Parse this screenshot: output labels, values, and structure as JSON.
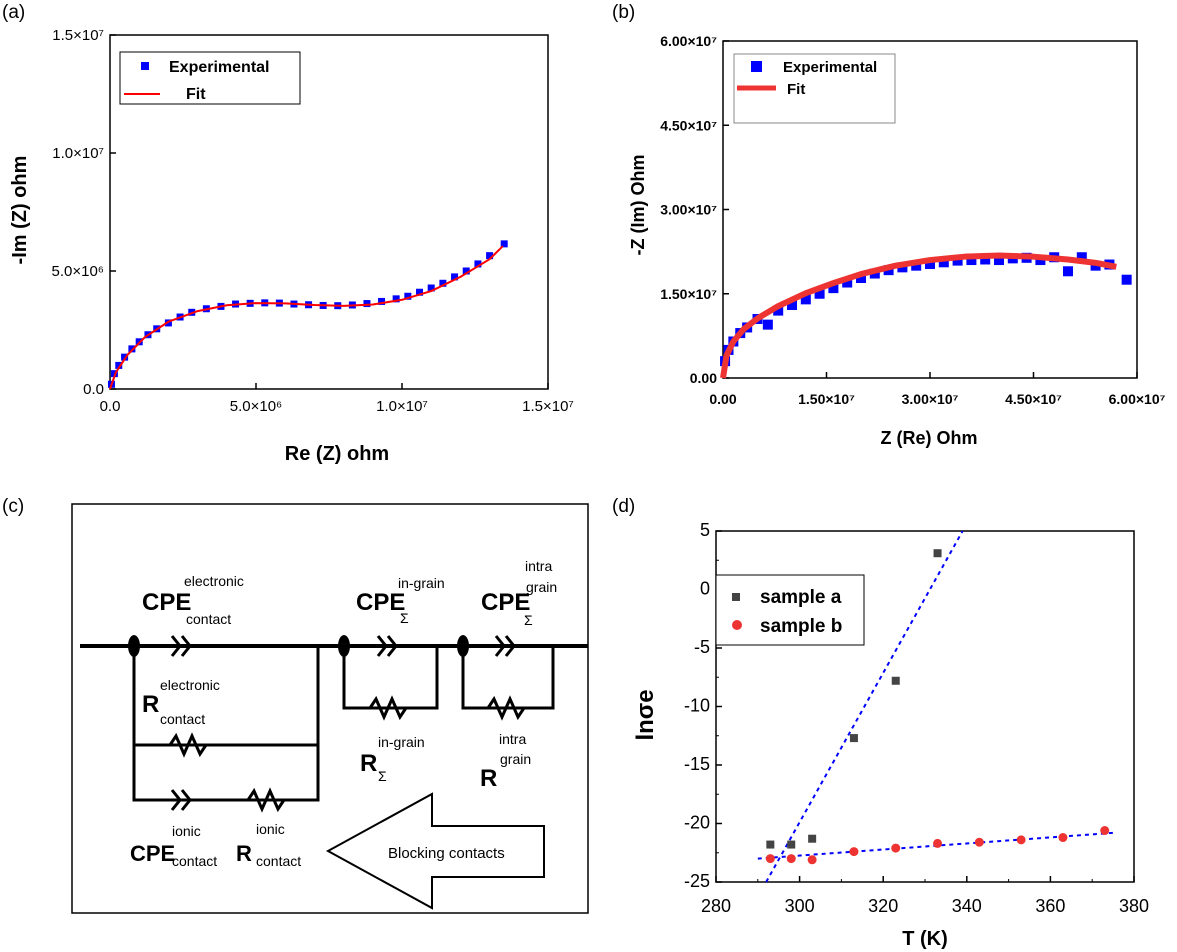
{
  "panels": {
    "a": {
      "label": "(a)"
    },
    "b": {
      "label": "(b)"
    },
    "c": {
      "label": "(c)"
    },
    "d": {
      "label": "(d)"
    }
  },
  "chart_data": [
    {
      "id": "a",
      "type": "scatter",
      "xlabel": "Re (Z) ohm",
      "ylabel": "-Im (Z) ohm",
      "xlim": [
        0,
        15000000
      ],
      "ylim": [
        0,
        15000000
      ],
      "xticks": [
        "0.0",
        "5.0×10⁶",
        "1.0×10⁷",
        "1.5×10⁷"
      ],
      "yticks": [
        "0.0",
        "5.0×10⁶",
        "1.0×10⁷",
        "1.5×10⁷"
      ],
      "legend": {
        "position": "top-left",
        "entries": [
          "Experimental",
          "Fit"
        ]
      },
      "series": [
        {
          "name": "Experimental",
          "marker": "square",
          "color": "#0000ff",
          "x": [
            50000,
            150000,
            300000,
            500000,
            750000,
            1000000,
            1300000,
            1600000,
            2000000,
            2400000,
            2800000,
            3300000,
            3800000,
            4300000,
            4800000,
            5300000,
            5800000,
            6300000,
            6800000,
            7300000,
            7800000,
            8300000,
            8800000,
            9300000,
            9800000,
            10200000,
            10600000,
            11000000,
            11400000,
            11800000,
            12200000,
            12600000,
            13000000,
            13500000
          ],
          "y": [
            200000,
            650000,
            1000000,
            1350000,
            1700000,
            2000000,
            2300000,
            2550000,
            2800000,
            3050000,
            3250000,
            3400000,
            3500000,
            3600000,
            3630000,
            3650000,
            3640000,
            3600000,
            3570000,
            3540000,
            3530000,
            3560000,
            3620000,
            3710000,
            3820000,
            3930000,
            4100000,
            4280000,
            4480000,
            4750000,
            5000000,
            5300000,
            5650000,
            6150000
          ]
        },
        {
          "name": "Fit",
          "marker": "line",
          "color": "#ff0000",
          "x": [
            0,
            200000,
            600000,
            1200000,
            2000000,
            3000000,
            4000000,
            5000000,
            6000000,
            7000000,
            8000000,
            9000000,
            10000000,
            11000000,
            12000000,
            13000000,
            13450000
          ],
          "y": [
            0,
            700000,
            1450000,
            2200000,
            2850000,
            3300000,
            3550000,
            3640000,
            3630000,
            3560000,
            3520000,
            3580000,
            3780000,
            4150000,
            4750000,
            5500000,
            6050000
          ]
        }
      ]
    },
    {
      "id": "b",
      "type": "scatter",
      "xlabel": "Z (Re) Ohm",
      "ylabel": "-Z (Im) Ohm",
      "xlim": [
        0,
        60000000
      ],
      "ylim": [
        0,
        60000000
      ],
      "xticks": [
        "0.00",
        "1.50×10⁷",
        "3.00×10⁷",
        "4.50×10⁷",
        "6.00×10⁷"
      ],
      "yticks": [
        "0.00",
        "1.50×10⁷",
        "3.00×10⁷",
        "4.50×10⁷",
        "6.00×10⁷"
      ],
      "legend": {
        "position": "top-left",
        "entries": [
          "Experimental",
          "Fit"
        ]
      },
      "series": [
        {
          "name": "Experimental",
          "marker": "square",
          "color": "#0000ff",
          "x": [
            300000,
            800000,
            1500000,
            2500000,
            3500000,
            5000000,
            6500000,
            8000000,
            10000000,
            12000000,
            14000000,
            16000000,
            18000000,
            20000000,
            22000000,
            24000000,
            26000000,
            28000000,
            30000000,
            32000000,
            34000000,
            36000000,
            38000000,
            40000000,
            42000000,
            44000000,
            46000000,
            48000000,
            50000000,
            52000000,
            54000000,
            56000000,
            58500000
          ],
          "y": [
            3000000,
            5000000,
            6500000,
            8000000,
            9000000,
            10500000,
            9500000,
            12000000,
            13000000,
            14000000,
            15000000,
            16000000,
            17000000,
            17800000,
            18600000,
            19200000,
            19700000,
            20000000,
            20300000,
            20600000,
            20900000,
            21000000,
            21100000,
            21000000,
            21300000,
            21400000,
            21000000,
            21500000,
            19000000,
            21500000,
            20000000,
            20200000,
            17500000
          ]
        },
        {
          "name": "Fit",
          "marker": "line",
          "color": "#ee3333",
          "x": [
            0,
            500000,
            1500000,
            3000000,
            5000000,
            8000000,
            12000000,
            16000000,
            20000000,
            25000000,
            30000000,
            35000000,
            40000000,
            45000000,
            50000000,
            54000000,
            57000000
          ],
          "y": [
            0,
            4000000,
            6500000,
            8700000,
            10600000,
            12800000,
            15100000,
            16900000,
            18500000,
            20000000,
            21000000,
            21600000,
            21800000,
            21600000,
            21100000,
            20500000,
            19800000
          ]
        }
      ]
    },
    {
      "id": "d",
      "type": "scatter",
      "xlabel": "T (K)",
      "ylabel": "lnσe",
      "xlim": [
        280,
        380
      ],
      "ylim": [
        -25,
        5
      ],
      "xticks": [
        "280",
        "300",
        "320",
        "340",
        "360",
        "380"
      ],
      "yticks": [
        "5",
        "0",
        "-5",
        "-10",
        "-15",
        "-20",
        "-25"
      ],
      "legend": {
        "position": "top-left",
        "entries": [
          "sample a",
          "sample b"
        ]
      },
      "series": [
        {
          "name": "sample a",
          "marker": "square",
          "color": "#444444",
          "x": [
            293,
            298,
            303,
            313,
            323,
            333
          ],
          "y": [
            -21.8,
            -21.8,
            -21.3,
            -12.7,
            -7.8,
            3.1
          ],
          "fit": {
            "x": [
              292,
              339
            ],
            "y": [
              -25,
              5
            ]
          }
        },
        {
          "name": "sample b",
          "marker": "circle",
          "color": "#ee3333",
          "x": [
            293,
            298,
            303,
            313,
            323,
            333,
            343,
            353,
            363,
            373
          ],
          "y": [
            -23.0,
            -23.0,
            -23.1,
            -22.4,
            -22.1,
            -21.7,
            -21.6,
            -21.4,
            -21.2,
            -20.6
          ],
          "fit": {
            "x": [
              290,
              375
            ],
            "y": [
              -23.0,
              -20.8
            ]
          }
        }
      ]
    }
  ],
  "circuit": {
    "cpe_label": "CPE",
    "r_label": "R",
    "electronic_sup": "electronic",
    "contact_sub": "contact",
    "ingrain_sup": "in-grain",
    "sigma_sub": "Σ",
    "intra_sup": "intra",
    "grain_sup": "grain",
    "ionic_sup": "ionic",
    "arrow_text": "Blocking contacts"
  },
  "colors": {
    "blue": "#0000ff",
    "red": "#ff0000",
    "dark": "#444444"
  }
}
